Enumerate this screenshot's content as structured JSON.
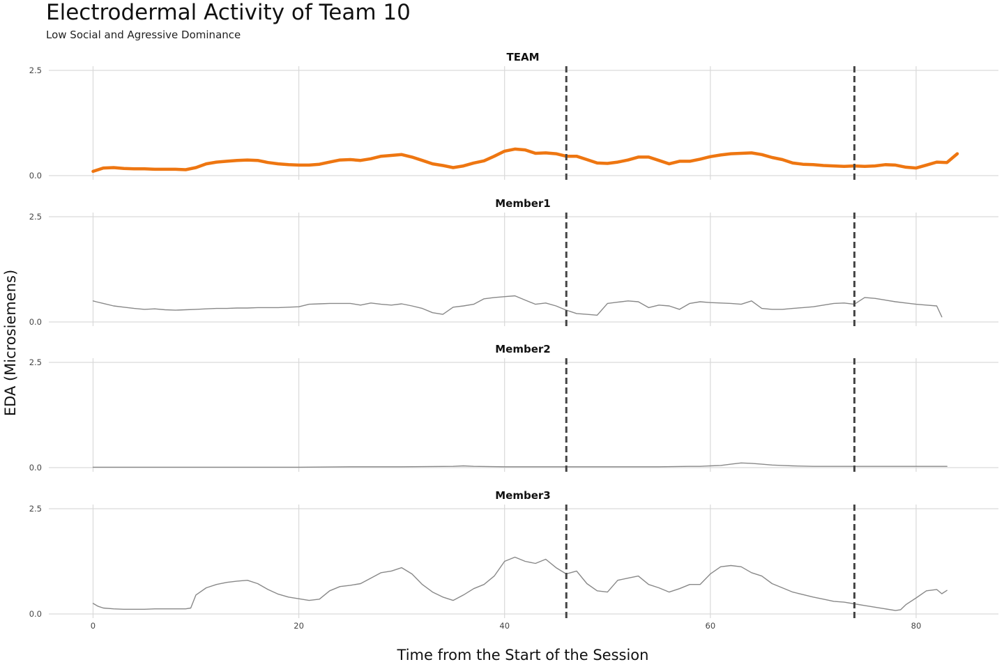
{
  "header": {
    "title": "Electrodermal Activity of Team 10",
    "subtitle": "Low Social and Agressive Dominance"
  },
  "chart_data": {
    "type": "line",
    "title": "Electrodermal Activity of Team 10",
    "subtitle": "Low Social and Agressive Dominance",
    "xlabel": "Time from the Start of the Session",
    "ylabel": "EDA (Microsiemens)",
    "xlim": [
      -4.3,
      88
    ],
    "ylim": [
      -0.1,
      2.6
    ],
    "x_ticks": [
      0,
      20,
      40,
      60,
      80
    ],
    "x_tick_labels": [
      "0",
      "20",
      "40",
      "60",
      "80"
    ],
    "y_ticks": [
      0,
      2.5
    ],
    "y_tick_labels": [
      "0.0",
      "2.5"
    ],
    "vlines": [
      46,
      74
    ],
    "colors": {
      "team": "#EE7611",
      "member": "#888888",
      "vline": "#444444",
      "grid": "#d9d9d9"
    },
    "panels": [
      {
        "name": "TEAM",
        "color": "#EE7611",
        "x": [
          0,
          1,
          2,
          3,
          4,
          5,
          6,
          7,
          8,
          9,
          10,
          11,
          12,
          13,
          14,
          15,
          16,
          17,
          18,
          19,
          20,
          21,
          22,
          23,
          24,
          25,
          26,
          27,
          28,
          29,
          30,
          31,
          32,
          33,
          34,
          35,
          36,
          37,
          38,
          39,
          40,
          41,
          42,
          43,
          44,
          45,
          46,
          47,
          48,
          49,
          50,
          51,
          52,
          53,
          54,
          55,
          56,
          57,
          58,
          59,
          60,
          61,
          62,
          63,
          64,
          65,
          66,
          67,
          68,
          69,
          70,
          71,
          72,
          73,
          74,
          75,
          76,
          77,
          78,
          79,
          80,
          81,
          82,
          83,
          84
        ],
        "values": [
          0.1,
          0.18,
          0.19,
          0.17,
          0.16,
          0.16,
          0.15,
          0.15,
          0.15,
          0.14,
          0.19,
          0.28,
          0.32,
          0.34,
          0.36,
          0.37,
          0.36,
          0.31,
          0.28,
          0.26,
          0.25,
          0.25,
          0.27,
          0.32,
          0.37,
          0.38,
          0.36,
          0.4,
          0.46,
          0.48,
          0.5,
          0.44,
          0.36,
          0.28,
          0.24,
          0.19,
          0.23,
          0.3,
          0.35,
          0.46,
          0.58,
          0.63,
          0.61,
          0.53,
          0.54,
          0.52,
          0.46,
          0.46,
          0.38,
          0.3,
          0.29,
          0.32,
          0.37,
          0.44,
          0.44,
          0.36,
          0.28,
          0.34,
          0.34,
          0.39,
          0.45,
          0.49,
          0.52,
          0.53,
          0.54,
          0.5,
          0.43,
          0.38,
          0.3,
          0.27,
          0.26,
          0.24,
          0.23,
          0.22,
          0.23,
          0.22,
          0.23,
          0.26,
          0.25,
          0.2,
          0.18,
          0.25,
          0.32,
          0.31,
          0.52
        ]
      },
      {
        "name": "Member1",
        "color": "#888888",
        "x": [
          0,
          0.3,
          1,
          2,
          3,
          4,
          5,
          6,
          7,
          8,
          9,
          10,
          11,
          12,
          13,
          14,
          15,
          16,
          17,
          18,
          19,
          20,
          21,
          22,
          23,
          24,
          25,
          26,
          27,
          28,
          29,
          30,
          31,
          32,
          33,
          34,
          35,
          36,
          37,
          38,
          39,
          40,
          41,
          42,
          43,
          44,
          45,
          46,
          47,
          48,
          49,
          50,
          51,
          52,
          53,
          54,
          55,
          56,
          57,
          58,
          59,
          60,
          61,
          62,
          63,
          64,
          65,
          66,
          67,
          68,
          69,
          70,
          71,
          72,
          73,
          74,
          75,
          76,
          77,
          78,
          79,
          80,
          81,
          82,
          82.5
        ],
        "values": [
          0.5,
          0.48,
          0.44,
          0.38,
          0.35,
          0.32,
          0.3,
          0.31,
          0.29,
          0.28,
          0.29,
          0.3,
          0.31,
          0.32,
          0.32,
          0.33,
          0.33,
          0.34,
          0.34,
          0.34,
          0.35,
          0.36,
          0.42,
          0.43,
          0.44,
          0.44,
          0.44,
          0.4,
          0.45,
          0.42,
          0.4,
          0.43,
          0.38,
          0.32,
          0.22,
          0.18,
          0.35,
          0.38,
          0.42,
          0.55,
          0.58,
          0.6,
          0.62,
          0.52,
          0.42,
          0.45,
          0.38,
          0.28,
          0.2,
          0.18,
          0.16,
          0.44,
          0.47,
          0.5,
          0.48,
          0.34,
          0.4,
          0.38,
          0.3,
          0.44,
          0.48,
          0.46,
          0.45,
          0.44,
          0.42,
          0.5,
          0.32,
          0.3,
          0.3,
          0.32,
          0.34,
          0.36,
          0.4,
          0.44,
          0.45,
          0.42,
          0.58,
          0.56,
          0.52,
          0.48,
          0.45,
          0.42,
          0.4,
          0.38,
          0.12
        ]
      },
      {
        "name": "Member2",
        "color": "#888888",
        "x": [
          0,
          5,
          10,
          15,
          20,
          25,
          30,
          35,
          36,
          37,
          40,
          45,
          50,
          55,
          58,
          59,
          60,
          61,
          62,
          63,
          64,
          65,
          66,
          67,
          68,
          70,
          75,
          80,
          83
        ],
        "values": [
          0.01,
          0.01,
          0.01,
          0.01,
          0.01,
          0.02,
          0.02,
          0.03,
          0.04,
          0.03,
          0.02,
          0.02,
          0.02,
          0.02,
          0.03,
          0.03,
          0.04,
          0.05,
          0.08,
          0.11,
          0.1,
          0.08,
          0.06,
          0.05,
          0.04,
          0.03,
          0.03,
          0.03,
          0.03
        ]
      },
      {
        "name": "Member3",
        "color": "#888888",
        "x": [
          0,
          0.5,
          1,
          2,
          3,
          4,
          5,
          6,
          7,
          8,
          9,
          9.5,
          10,
          11,
          12,
          13,
          14,
          15,
          16,
          17,
          18,
          19,
          20,
          21,
          22,
          23,
          24,
          25,
          26,
          27,
          28,
          29,
          30,
          31,
          32,
          33,
          34,
          35,
          36,
          37,
          38,
          39,
          40,
          41,
          42,
          43,
          44,
          45,
          46,
          47,
          48,
          49,
          50,
          51,
          52,
          53,
          54,
          55,
          56,
          57,
          58,
          59,
          60,
          61,
          62,
          63,
          64,
          65,
          66,
          67,
          68,
          69,
          70,
          71,
          72,
          73,
          74,
          75,
          76,
          77,
          78,
          78.5,
          79,
          80,
          81,
          82,
          82.5,
          83
        ],
        "values": [
          0.25,
          0.18,
          0.14,
          0.12,
          0.11,
          0.11,
          0.11,
          0.12,
          0.12,
          0.12,
          0.12,
          0.14,
          0.45,
          0.62,
          0.7,
          0.75,
          0.78,
          0.8,
          0.72,
          0.58,
          0.47,
          0.4,
          0.36,
          0.32,
          0.35,
          0.55,
          0.65,
          0.68,
          0.72,
          0.85,
          0.98,
          1.02,
          1.1,
          0.95,
          0.7,
          0.52,
          0.4,
          0.32,
          0.45,
          0.6,
          0.7,
          0.9,
          1.25,
          1.35,
          1.25,
          1.2,
          1.3,
          1.1,
          0.95,
          1.02,
          0.72,
          0.55,
          0.52,
          0.8,
          0.85,
          0.9,
          0.7,
          0.62,
          0.52,
          0.6,
          0.7,
          0.7,
          0.95,
          1.12,
          1.15,
          1.12,
          0.98,
          0.9,
          0.72,
          0.62,
          0.52,
          0.46,
          0.4,
          0.35,
          0.3,
          0.28,
          0.24,
          0.2,
          0.16,
          0.12,
          0.08,
          0.1,
          0.22,
          0.38,
          0.55,
          0.58,
          0.48,
          0.56
        ]
      }
    ]
  }
}
